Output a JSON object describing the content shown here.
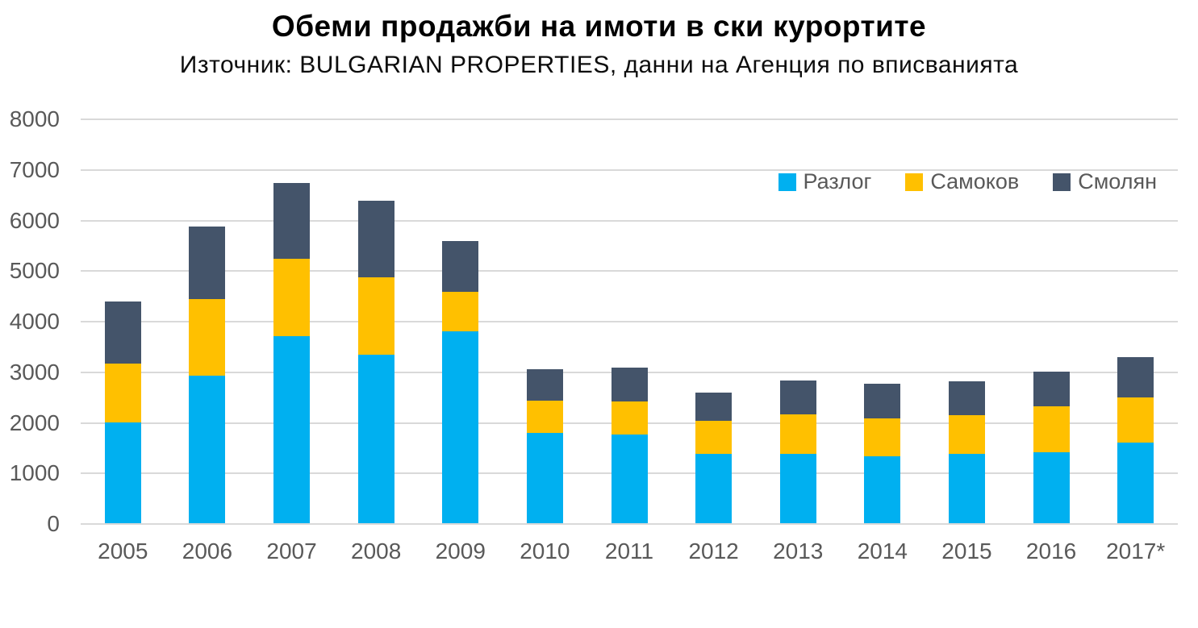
{
  "page": {
    "title": "Обеми продажби на имоти в ски курортите",
    "subtitle": "Източник: BULGARIAN PROPERTIES, данни на Агенция по вписванията"
  },
  "chart_data": {
    "type": "bar",
    "stacked": true,
    "title": "Обеми продажби на имоти в ски курортите",
    "subtitle": "Източник: BULGARIAN PROPERTIES, данни на Агенция по вписванията",
    "categories": [
      "2005",
      "2006",
      "2007",
      "2008",
      "2009",
      "2010",
      "2011",
      "2012",
      "2013",
      "2014",
      "2015",
      "2016",
      "2017*"
    ],
    "series": [
      {
        "name": "Разлог",
        "color": "#00B0F0",
        "values": [
          2000,
          2920,
          3700,
          3330,
          3800,
          1780,
          1760,
          1370,
          1370,
          1320,
          1370,
          1410,
          1600
        ]
      },
      {
        "name": "Самоков",
        "color": "#FFC000",
        "values": [
          1160,
          1510,
          1530,
          1530,
          770,
          650,
          650,
          660,
          780,
          750,
          770,
          900,
          890
        ]
      },
      {
        "name": "Смолян",
        "color": "#44546A",
        "values": [
          1220,
          1440,
          1490,
          1510,
          1010,
          610,
          660,
          560,
          670,
          690,
          660,
          690,
          800
        ]
      }
    ],
    "stack_totals": [
      4380,
      5870,
      6720,
      6370,
      5580,
      3040,
      3070,
      2590,
      2820,
      2760,
      2800,
      3000,
      3290
    ],
    "xlabel": "",
    "ylabel": "",
    "ylim": [
      0,
      8000
    ],
    "ytick_step": 1000,
    "ytick_labels": [
      "0",
      "1000",
      "2000",
      "3000",
      "4000",
      "5000",
      "6000",
      "7000",
      "8000"
    ],
    "grid": "horizontal",
    "gridline_color": "#D9D9D9",
    "axis_text_color": "#595959",
    "legend_position": "top-right",
    "legend_entries": [
      "Разлог",
      "Самоков",
      "Смолян"
    ]
  }
}
